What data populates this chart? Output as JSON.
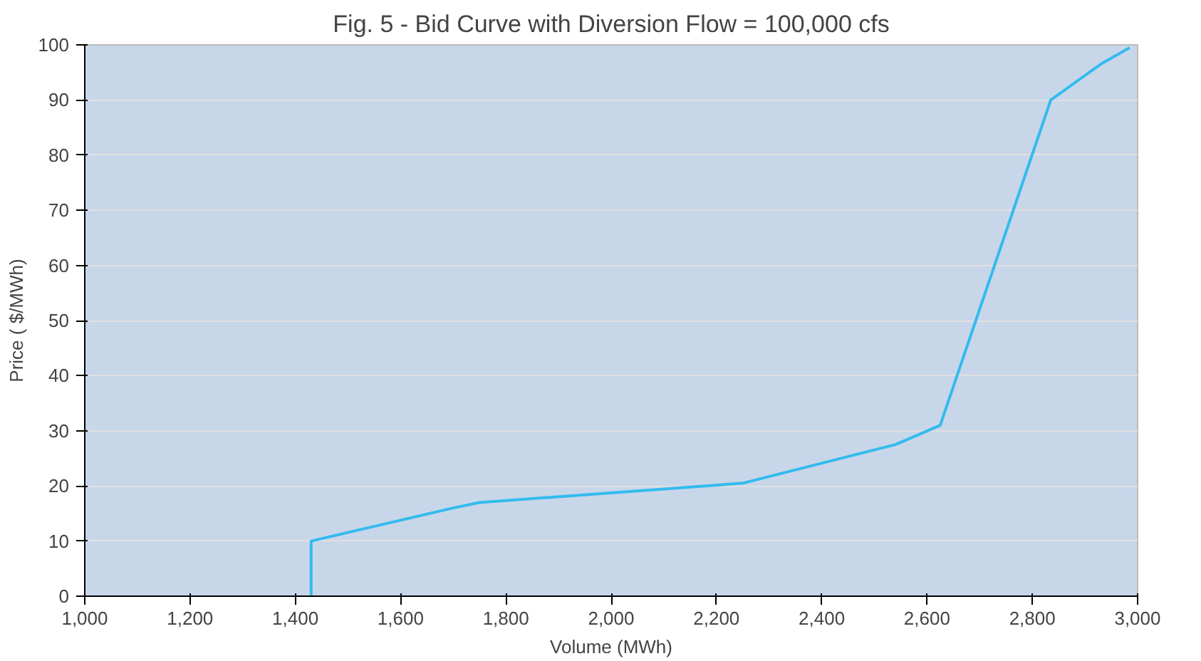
{
  "chart_data": {
    "type": "line",
    "title": "Fig. 5 - Bid Curve with Diversion Flow = 100,000 cfs",
    "xlabel": "Volume (MWh)",
    "ylabel": "Price ( $/MWh)",
    "x": [
      1430,
      1430,
      1700,
      1750,
      2250,
      2540,
      2625,
      2835,
      2930,
      2985
    ],
    "series": [
      {
        "color": "#33bbee",
        "values": [
          0,
          10,
          16,
          17,
          20.5,
          27.5,
          31,
          90,
          96.5,
          99.5
        ]
      }
    ],
    "xlim": [
      1000,
      3000
    ],
    "ylim": [
      0,
      100
    ],
    "xticks": [
      {
        "value": 1000,
        "label": "1,000"
      },
      {
        "value": 1200,
        "label": "1,200"
      },
      {
        "value": 1400,
        "label": "1,400"
      },
      {
        "value": 1600,
        "label": "1,600"
      },
      {
        "value": 1800,
        "label": "1,800"
      },
      {
        "value": 2000,
        "label": "2,000"
      },
      {
        "value": 2200,
        "label": "2,200"
      },
      {
        "value": 2400,
        "label": "2,400"
      },
      {
        "value": 2600,
        "label": "2,600"
      },
      {
        "value": 2800,
        "label": "2,800"
      },
      {
        "value": 3000,
        "label": "3,000"
      }
    ],
    "yticks": [
      0,
      10,
      20,
      30,
      40,
      50,
      60,
      70,
      80,
      90,
      100
    ],
    "grid": "y",
    "marker": "none",
    "line_style": "solid"
  }
}
